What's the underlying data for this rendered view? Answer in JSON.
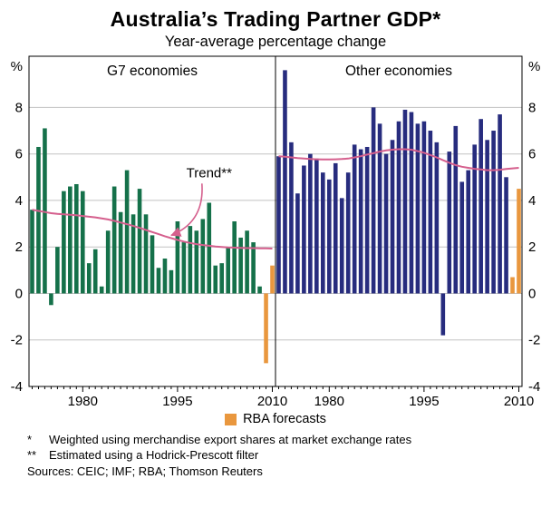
{
  "title": "Australia’s Trading Partner GDP*",
  "subtitle": "Year-average percentage change",
  "legend": {
    "label": "RBA forecasts",
    "color": "#E9973E"
  },
  "footnotes": [
    {
      "marker": "*",
      "text": "Weighted using merchandise export shares at market exchange rates"
    },
    {
      "marker": "**",
      "text": "Estimated using a Hodrick-Prescott filter"
    }
  ],
  "sources": "Sources: CEIC; IMF; RBA; Thomson Reuters",
  "chart_data": {
    "type": "bar",
    "unit": "%",
    "ylim": [
      -4,
      10.2
    ],
    "yticks": [
      -4,
      -2,
      0,
      2,
      4,
      6,
      8
    ],
    "start_year": 1972,
    "end_year": 2010,
    "xticks": [
      1980,
      1995,
      2010
    ],
    "grid": true,
    "legend_position": "bottom",
    "trend_color": "#D55F8D",
    "forecast_color": "#E9973E",
    "annotation": {
      "label": "Trend**",
      "text_year": 2000,
      "text_value": 5.0,
      "tip_year": 1994,
      "tip_value": 2.5
    },
    "panels": [
      {
        "title": "G7 economies",
        "bar_color": "#15714A",
        "forecast_from_index": 37,
        "values": [
          3.6,
          6.3,
          7.1,
          -0.5,
          2.0,
          4.4,
          4.6,
          4.7,
          4.4,
          1.3,
          1.9,
          0.3,
          2.7,
          4.6,
          3.5,
          5.3,
          3.4,
          4.5,
          3.4,
          2.5,
          1.1,
          1.5,
          1.0,
          3.1,
          2.2,
          2.9,
          2.7,
          3.2,
          3.9,
          1.2,
          1.3,
          2.0,
          3.1,
          2.4,
          2.7,
          2.2,
          0.3,
          -3.0,
          1.2
        ],
        "trend": [
          3.6,
          3.55,
          3.5,
          3.45,
          3.42,
          3.4,
          3.38,
          3.36,
          3.33,
          3.3,
          3.27,
          3.23,
          3.18,
          3.12,
          3.05,
          2.98,
          2.9,
          2.82,
          2.73,
          2.64,
          2.55,
          2.46,
          2.38,
          2.3,
          2.23,
          2.17,
          2.12,
          2.08,
          2.05,
          2.02,
          2.0,
          1.98,
          1.97,
          1.96,
          1.95,
          1.95,
          1.94,
          1.94,
          1.93
        ]
      },
      {
        "title": "Other economies",
        "bar_color": "#272C7E",
        "forecast_from_index": 37,
        "values": [
          5.9,
          9.6,
          6.5,
          4.3,
          5.5,
          6.0,
          5.8,
          5.2,
          4.9,
          5.6,
          4.1,
          5.2,
          6.4,
          6.2,
          6.3,
          8.0,
          7.3,
          6.0,
          6.6,
          7.4,
          7.9,
          7.8,
          7.3,
          7.4,
          7.0,
          6.5,
          -1.8,
          6.1,
          7.2,
          4.8,
          5.3,
          6.4,
          7.5,
          6.6,
          7.0,
          7.7,
          5.0,
          0.7,
          4.5
        ],
        "trend": [
          5.9,
          5.88,
          5.85,
          5.82,
          5.8,
          5.78,
          5.77,
          5.76,
          5.76,
          5.77,
          5.78,
          5.8,
          5.85,
          5.9,
          5.97,
          6.03,
          6.1,
          6.15,
          6.18,
          6.2,
          6.2,
          6.18,
          6.12,
          6.05,
          5.95,
          5.85,
          5.73,
          5.62,
          5.52,
          5.45,
          5.4,
          5.36,
          5.33,
          5.3,
          5.3,
          5.32,
          5.35,
          5.38,
          5.4
        ]
      }
    ]
  }
}
